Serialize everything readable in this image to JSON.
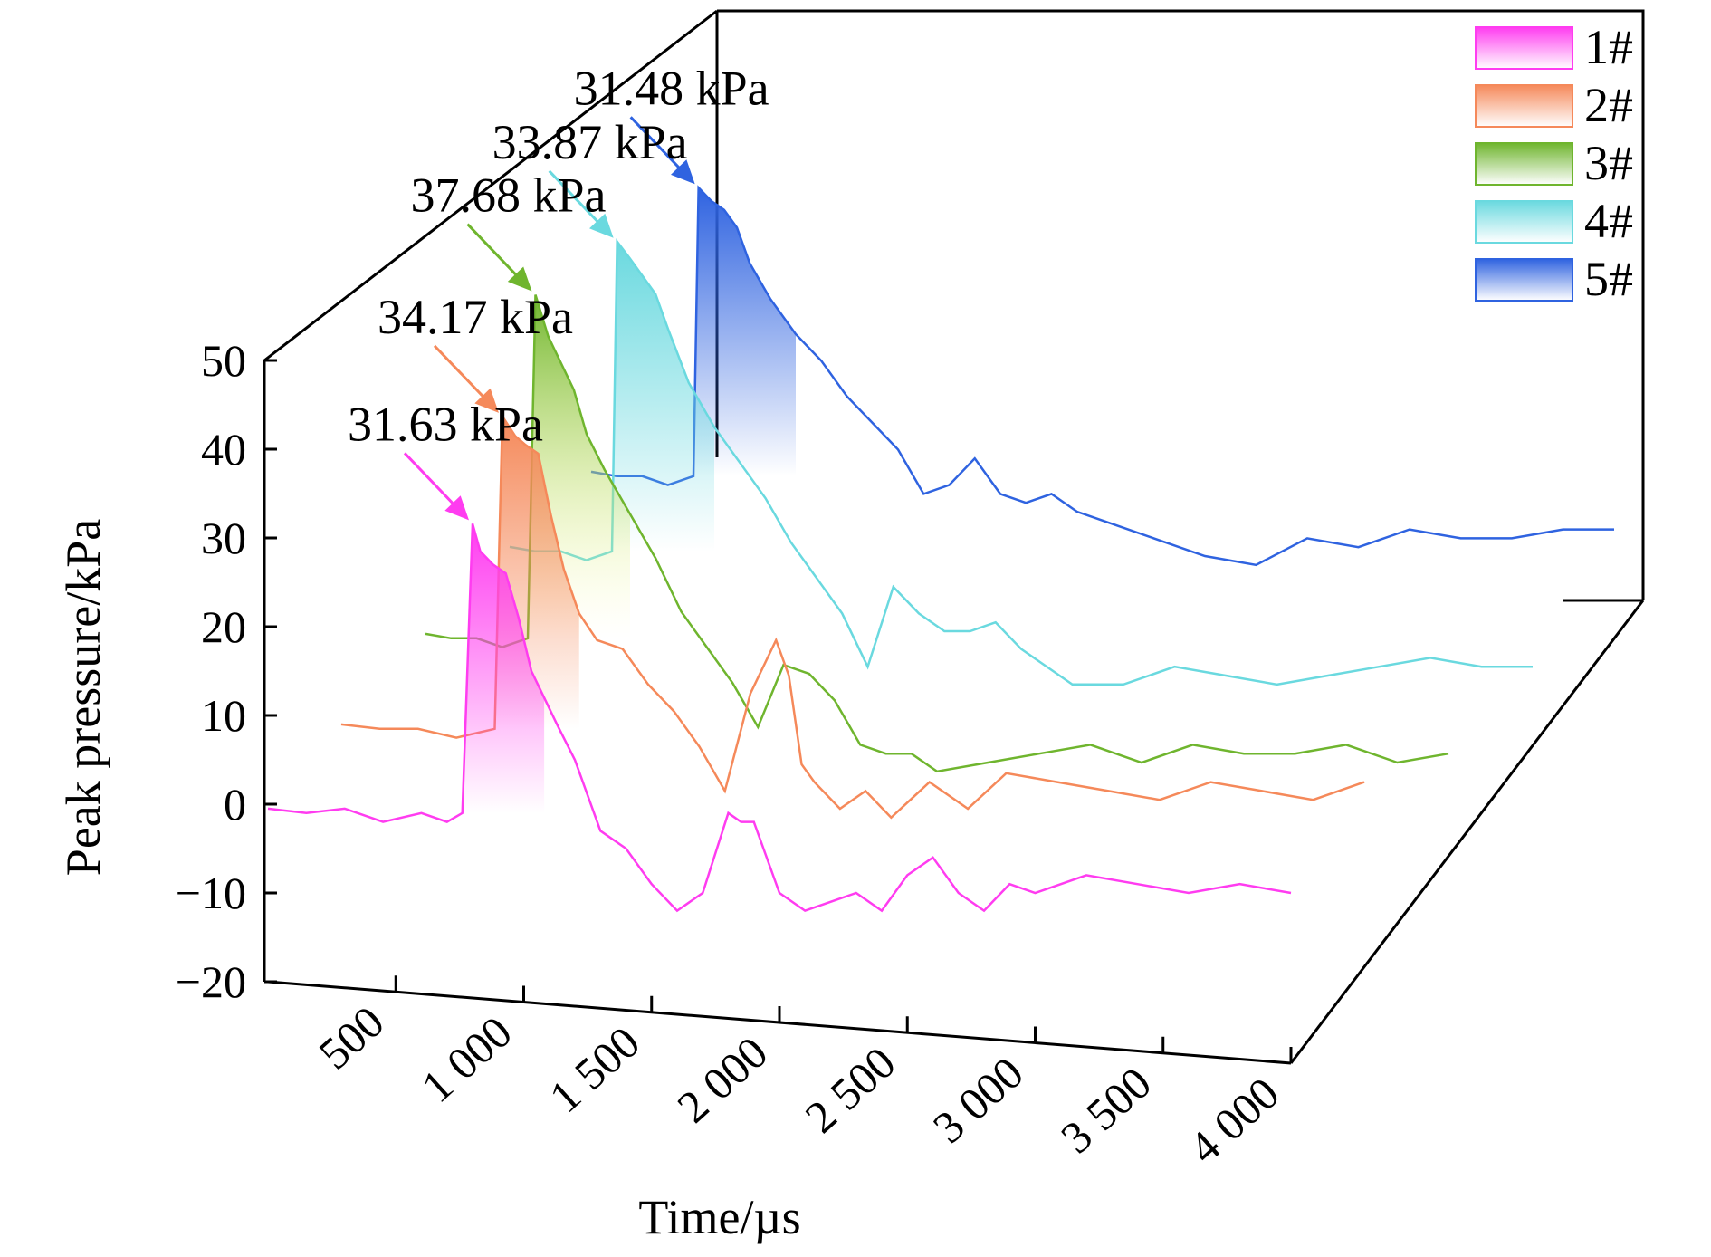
{
  "chart_data": {
    "type": "line",
    "xlabel": "Time/µs",
    "ylabel": "Peak pressure/kPa",
    "xlim": [
      0,
      4000
    ],
    "ylim": [
      -20,
      50
    ],
    "x_ticks": [
      500,
      1000,
      1500,
      2000,
      2500,
      3000,
      3500,
      4000
    ],
    "x_tick_labels": [
      "500",
      "1 000",
      "1 500",
      "2 000",
      "2 500",
      "3 000",
      "3 500",
      "4 000"
    ],
    "y_ticks": [
      -20,
      -10,
      0,
      10,
      20,
      30,
      40,
      50
    ],
    "y_tick_labels": [
      "−20",
      "−10",
      "0",
      "10",
      "20",
      "30",
      "40",
      "50"
    ],
    "legend_position": "top-right",
    "series": [
      {
        "name": "1#",
        "color": "#ff3cf0",
        "peak_label": "31.63 kPa",
        "x": [
          0,
          150,
          300,
          450,
          600,
          700,
          760,
          800,
          830,
          880,
          930,
          980,
          1030,
          1080,
          1130,
          1200,
          1300,
          1400,
          1500,
          1600,
          1700,
          1800,
          1850,
          1900,
          2000,
          2100,
          2200,
          2300,
          2400,
          2500,
          2600,
          2700,
          2800,
          2900,
          3000,
          3200,
          3400,
          3600,
          3800,
          4000
        ],
        "y": [
          -0.5,
          -1,
          -0.5,
          -2,
          -1,
          -2,
          -1,
          31.6,
          28.5,
          27,
          26,
          21,
          15,
          12,
          9,
          5,
          -3,
          -5,
          -9,
          -12,
          -10,
          -1,
          -2,
          -2,
          -10,
          -12,
          -11,
          -10,
          -12,
          -8,
          -6,
          -10,
          -12,
          -9,
          -10,
          -8,
          -9,
          -10,
          -9,
          -10
        ]
      },
      {
        "name": "2#",
        "color": "#f5895a",
        "peak_label": "34.17 kPa",
        "x": [
          0,
          150,
          300,
          450,
          600,
          630,
          680,
          720,
          770,
          820,
          870,
          930,
          1000,
          1100,
          1200,
          1300,
          1400,
          1500,
          1600,
          1700,
          1750,
          1800,
          1850,
          1950,
          2050,
          2150,
          2300,
          2450,
          2600,
          2800,
          3000,
          3200,
          3400,
          3600,
          3800,
          4000
        ],
        "y": [
          -0.5,
          -1,
          -1,
          -2,
          -1,
          34.2,
          32,
          31,
          30,
          23,
          17,
          12,
          9,
          8,
          4,
          1,
          -3,
          -8,
          3,
          9,
          5,
          -5,
          -7,
          -10,
          -8,
          -11,
          -7,
          -10,
          -6,
          -7,
          -8,
          -9,
          -7,
          -8,
          -9,
          -7
        ]
      },
      {
        "name": "3#",
        "color": "#6fb52e",
        "peak_label": "37.68 kPa",
        "x": [
          0,
          100,
          200,
          300,
          400,
          430,
          480,
          530,
          580,
          630,
          700,
          800,
          900,
          1000,
          1100,
          1200,
          1300,
          1400,
          1500,
          1600,
          1700,
          1800,
          1900,
          2000,
          2200,
          2400,
          2600,
          2800,
          3000,
          3200,
          3400,
          3600,
          3800,
          4000
        ],
        "y": [
          -0.5,
          -1,
          -1,
          -2,
          -1,
          37.7,
          33,
          30,
          27,
          22,
          18,
          13,
          8,
          2,
          -2,
          -6,
          -11,
          -4,
          -5,
          -8,
          -13,
          -14,
          -14,
          -16,
          -15,
          -14,
          -13,
          -15,
          -13,
          -14,
          -14,
          -13,
          -15,
          -14
        ]
      },
      {
        "name": "4#",
        "color": "#6ad9df",
        "peak_label": "33.87 kPa",
        "x": [
          0,
          100,
          200,
          300,
          400,
          420,
          470,
          520,
          570,
          620,
          700,
          800,
          900,
          1000,
          1100,
          1200,
          1300,
          1400,
          1500,
          1600,
          1700,
          1800,
          1900,
          2000,
          2200,
          2400,
          2600,
          2800,
          3000,
          3200,
          3400,
          3600,
          3800,
          4000
        ],
        "y": [
          -0.5,
          -1,
          -1,
          -2,
          -1,
          33.9,
          32,
          30,
          28,
          24,
          18,
          13,
          9,
          5,
          0,
          -4,
          -8,
          -14,
          -5,
          -8,
          -10,
          -10,
          -9,
          -12,
          -16,
          -16,
          -14,
          -15,
          -16,
          -15,
          -14,
          -13,
          -14,
          -14
        ]
      },
      {
        "name": "5#",
        "color": "#2f63e0",
        "peak_label": "31.48 kPa",
        "x": [
          0,
          100,
          200,
          300,
          400,
          420,
          470,
          520,
          570,
          620,
          700,
          800,
          900,
          1000,
          1100,
          1200,
          1300,
          1400,
          1500,
          1600,
          1700,
          1800,
          1900,
          2000,
          2200,
          2400,
          2600,
          2800,
          3000,
          3200,
          3400,
          3600,
          3800,
          4000
        ],
        "y": [
          -0.5,
          -1,
          -1,
          -2,
          -1,
          31.5,
          30,
          29,
          27,
          23,
          19,
          15,
          12,
          8,
          5,
          2,
          -3,
          -2,
          1,
          -3,
          -4,
          -3,
          -5,
          -6,
          -8,
          -10,
          -11,
          -8,
          -9,
          -7,
          -8,
          -8,
          -7,
          -7
        ]
      }
    ]
  }
}
